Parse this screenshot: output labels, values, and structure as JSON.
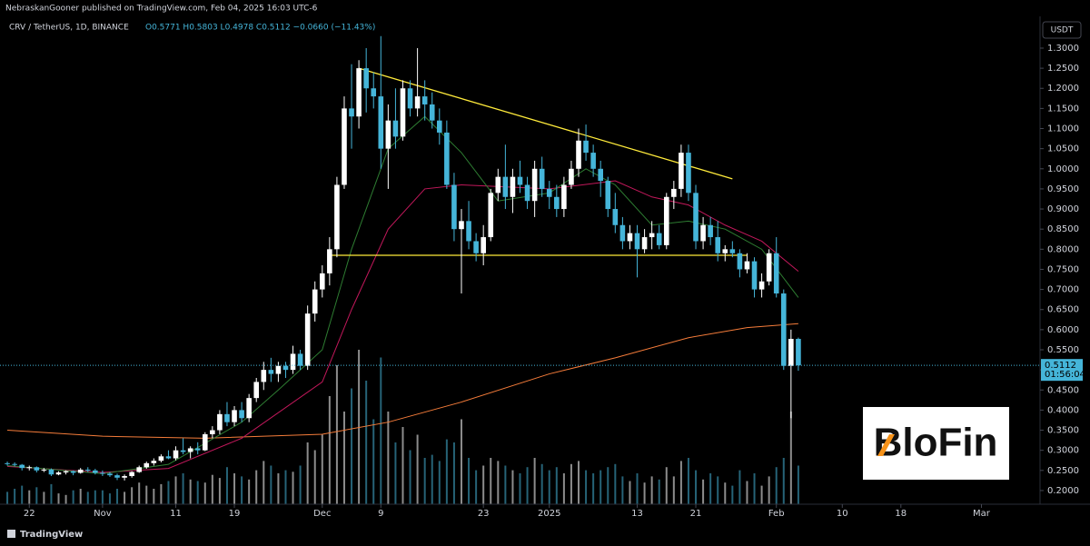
{
  "header": "NebraskanGooner published on TradingView.com, Feb 04, 2025 16:03 UTC-6",
  "footer": "TradingView",
  "watermark": "BloFin",
  "chart_data": {
    "type": "candlestick",
    "symbol": "CRV / TetherUS, 1D, BINANCE",
    "ohlc_text": "O0.5771 H0.5803 L0.4978 C0.5112 −0.0660 (−11.43%)",
    "currency": "USDT",
    "last_price": 0.5112,
    "countdown": "01:56:04",
    "up_color": "#ffffff",
    "down_color": "#45b5d9",
    "grid": false,
    "xlim": [
      "2024-10-18",
      "2025-03-09"
    ],
    "xticks": [
      {
        "value": "2024-10-22",
        "label": "22"
      },
      {
        "value": "2024-11-01",
        "label": "Nov"
      },
      {
        "value": "2024-11-11",
        "label": "11"
      },
      {
        "value": "2024-11-19",
        "label": "19"
      },
      {
        "value": "2024-12-01",
        "label": "Dec"
      },
      {
        "value": "2024-12-09",
        "label": "9"
      },
      {
        "value": "2024-12-23",
        "label": "23"
      },
      {
        "value": "2025-01-01",
        "label": "2025"
      },
      {
        "value": "2025-01-13",
        "label": "13"
      },
      {
        "value": "2025-01-21",
        "label": "21"
      },
      {
        "value": "2025-02-01",
        "label": "Feb"
      },
      {
        "value": "2025-02-10",
        "label": "10"
      },
      {
        "value": "2025-02-18",
        "label": "18"
      },
      {
        "value": "2025-03-01",
        "label": "Mar"
      }
    ],
    "ylim": [
      0.166,
      1.379
    ],
    "yticks": [
      {
        "value": 0.2,
        "label": "0.2000"
      },
      {
        "value": 0.25,
        "label": "0.2500"
      },
      {
        "value": 0.3,
        "label": "0.3000"
      },
      {
        "value": 0.35,
        "label": "0.3500"
      },
      {
        "value": 0.4,
        "label": "0.4000"
      },
      {
        "value": 0.45,
        "label": "0.4500"
      },
      {
        "value": 0.5,
        "label": "0.5000"
      },
      {
        "value": 0.55,
        "label": "0.5500"
      },
      {
        "value": 0.6,
        "label": "0.6000"
      },
      {
        "value": 0.65,
        "label": "0.6500"
      },
      {
        "value": 0.7,
        "label": "0.7000"
      },
      {
        "value": 0.75,
        "label": "0.7500"
      },
      {
        "value": 0.8,
        "label": "0.8000"
      },
      {
        "value": 0.85,
        "label": "0.8500"
      },
      {
        "value": 0.9,
        "label": "0.9000"
      },
      {
        "value": 0.95,
        "label": "0.9500"
      },
      {
        "value": 1.0,
        "label": "1.0000"
      },
      {
        "value": 1.05,
        "label": "1.0500"
      },
      {
        "value": 1.1,
        "label": "1.1000"
      },
      {
        "value": 1.15,
        "label": "1.1500"
      },
      {
        "value": 1.2,
        "label": "1.2000"
      },
      {
        "value": 1.25,
        "label": "1.2500"
      },
      {
        "value": 1.3,
        "label": "1.3000"
      }
    ],
    "x": [
      "2024-10-19",
      "2024-10-20",
      "2024-10-21",
      "2024-10-22",
      "2024-10-23",
      "2024-10-24",
      "2024-10-25",
      "2024-10-26",
      "2024-10-27",
      "2024-10-28",
      "2024-10-29",
      "2024-10-30",
      "2024-10-31",
      "2024-11-01",
      "2024-11-02",
      "2024-11-03",
      "2024-11-04",
      "2024-11-05",
      "2024-11-06",
      "2024-11-07",
      "2024-11-08",
      "2024-11-09",
      "2024-11-10",
      "2024-11-11",
      "2024-11-12",
      "2024-11-13",
      "2024-11-14",
      "2024-11-15",
      "2024-11-16",
      "2024-11-17",
      "2024-11-18",
      "2024-11-19",
      "2024-11-20",
      "2024-11-21",
      "2024-11-22",
      "2024-11-23",
      "2024-11-24",
      "2024-11-25",
      "2024-11-26",
      "2024-11-27",
      "2024-11-28",
      "2024-11-29",
      "2024-11-30",
      "2024-12-01",
      "2024-12-02",
      "2024-12-03",
      "2024-12-04",
      "2024-12-05",
      "2024-12-06",
      "2024-12-07",
      "2024-12-08",
      "2024-12-09",
      "2024-12-10",
      "2024-12-11",
      "2024-12-12",
      "2024-12-13",
      "2024-12-14",
      "2024-12-15",
      "2024-12-16",
      "2024-12-17",
      "2024-12-18",
      "2024-12-19",
      "2024-12-20",
      "2024-12-21",
      "2024-12-22",
      "2024-12-23",
      "2024-12-24",
      "2024-12-25",
      "2024-12-26",
      "2024-12-27",
      "2024-12-28",
      "2024-12-29",
      "2024-12-30",
      "2024-12-31",
      "2025-01-01",
      "2025-01-02",
      "2025-01-03",
      "2025-01-04",
      "2025-01-05",
      "2025-01-06",
      "2025-01-07",
      "2025-01-08",
      "2025-01-09",
      "2025-01-10",
      "2025-01-11",
      "2025-01-12",
      "2025-01-13",
      "2025-01-14",
      "2025-01-15",
      "2025-01-16",
      "2025-01-17",
      "2025-01-18",
      "2025-01-19",
      "2025-01-20",
      "2025-01-21",
      "2025-01-22",
      "2025-01-23",
      "2025-01-24",
      "2025-01-25",
      "2025-01-26",
      "2025-01-27",
      "2025-01-28",
      "2025-01-29",
      "2025-01-30",
      "2025-01-31",
      "2025-02-01",
      "2025-02-02",
      "2025-02-03",
      "2025-02-04"
    ],
    "open": [
      0.268,
      0.266,
      0.264,
      0.256,
      0.258,
      0.25,
      0.252,
      0.24,
      0.245,
      0.248,
      0.244,
      0.252,
      0.25,
      0.244,
      0.242,
      0.238,
      0.232,
      0.236,
      0.246,
      0.258,
      0.268,
      0.274,
      0.285,
      0.28,
      0.3,
      0.296,
      0.305,
      0.3,
      0.34,
      0.35,
      0.39,
      0.37,
      0.4,
      0.38,
      0.43,
      0.47,
      0.5,
      0.49,
      0.51,
      0.5,
      0.54,
      0.51,
      0.64,
      0.7,
      0.74,
      0.8,
      0.96,
      1.15,
      1.13,
      1.25,
      1.2,
      1.18,
      1.05,
      1.12,
      1.08,
      1.2,
      1.15,
      1.18,
      1.16,
      1.12,
      1.09,
      0.96,
      0.85,
      0.87,
      0.82,
      0.79,
      0.83,
      0.94,
      0.98,
      0.93,
      0.98,
      0.96,
      0.92,
      1.0,
      0.95,
      0.93,
      0.9,
      0.96,
      1.0,
      1.07,
      1.04,
      1.0,
      0.97,
      0.9,
      0.86,
      0.82,
      0.84,
      0.8,
      0.83,
      0.84,
      0.81,
      0.93,
      0.95,
      1.04,
      0.94,
      0.82,
      0.86,
      0.83,
      0.79,
      0.8,
      0.79,
      0.75,
      0.77,
      0.7,
      0.72,
      0.79,
      0.69,
      0.51,
      0.5771
    ],
    "high": [
      0.272,
      0.27,
      0.266,
      0.262,
      0.26,
      0.256,
      0.255,
      0.248,
      0.25,
      0.25,
      0.256,
      0.258,
      0.254,
      0.25,
      0.246,
      0.242,
      0.24,
      0.248,
      0.262,
      0.272,
      0.28,
      0.29,
      0.3,
      0.31,
      0.33,
      0.31,
      0.32,
      0.345,
      0.36,
      0.4,
      0.42,
      0.41,
      0.42,
      0.44,
      0.48,
      0.52,
      0.53,
      0.52,
      0.52,
      0.56,
      0.55,
      0.66,
      0.72,
      0.76,
      0.83,
      0.98,
      1.18,
      1.26,
      1.27,
      1.3,
      1.24,
      1.33,
      1.16,
      1.2,
      1.22,
      1.22,
      1.3,
      1.22,
      1.19,
      1.15,
      1.12,
      0.99,
      0.9,
      0.92,
      0.84,
      0.86,
      0.95,
      1.0,
      1.06,
      1.0,
      1.02,
      0.98,
      1.02,
      1.03,
      0.97,
      0.96,
      0.98,
      1.02,
      1.1,
      1.11,
      1.06,
      1.02,
      0.98,
      0.94,
      0.88,
      0.86,
      0.86,
      0.85,
      0.87,
      0.86,
      0.94,
      0.97,
      1.06,
      1.06,
      0.96,
      0.88,
      0.88,
      0.87,
      0.81,
      0.82,
      0.8,
      0.79,
      0.78,
      0.74,
      0.8,
      0.83,
      0.7,
      0.6,
      0.5803
    ],
    "low": [
      0.262,
      0.26,
      0.25,
      0.25,
      0.245,
      0.246,
      0.236,
      0.238,
      0.24,
      0.238,
      0.242,
      0.246,
      0.24,
      0.236,
      0.234,
      0.226,
      0.225,
      0.232,
      0.244,
      0.254,
      0.262,
      0.27,
      0.278,
      0.275,
      0.29,
      0.28,
      0.29,
      0.298,
      0.33,
      0.34,
      0.36,
      0.36,
      0.37,
      0.37,
      0.42,
      0.45,
      0.47,
      0.47,
      0.48,
      0.49,
      0.5,
      0.5,
      0.62,
      0.68,
      0.71,
      0.78,
      0.95,
      1.05,
      1.1,
      1.14,
      1.15,
      1.0,
      0.95,
      1.05,
      1.07,
      1.13,
      1.13,
      1.12,
      1.1,
      1.06,
      0.95,
      0.82,
      0.69,
      0.8,
      0.77,
      0.76,
      0.82,
      0.92,
      0.9,
      0.89,
      0.94,
      0.9,
      0.88,
      0.93,
      0.9,
      0.88,
      0.88,
      0.95,
      0.98,
      1.02,
      0.98,
      0.93,
      0.88,
      0.84,
      0.8,
      0.8,
      0.73,
      0.79,
      0.8,
      0.8,
      0.8,
      0.9,
      0.93,
      0.92,
      0.8,
      0.8,
      0.81,
      0.77,
      0.77,
      0.78,
      0.73,
      0.74,
      0.68,
      0.68,
      0.71,
      0.68,
      0.5,
      0.38,
      0.4978
    ],
    "close": [
      0.266,
      0.264,
      0.256,
      0.258,
      0.25,
      0.252,
      0.24,
      0.245,
      0.248,
      0.244,
      0.252,
      0.25,
      0.244,
      0.242,
      0.238,
      0.232,
      0.236,
      0.246,
      0.258,
      0.268,
      0.274,
      0.285,
      0.28,
      0.3,
      0.296,
      0.305,
      0.3,
      0.34,
      0.35,
      0.39,
      0.37,
      0.4,
      0.38,
      0.43,
      0.47,
      0.5,
      0.49,
      0.51,
      0.5,
      0.54,
      0.51,
      0.64,
      0.7,
      0.74,
      0.8,
      0.96,
      1.15,
      1.13,
      1.25,
      1.2,
      1.18,
      1.05,
      1.12,
      1.08,
      1.2,
      1.15,
      1.18,
      1.16,
      1.12,
      1.09,
      0.96,
      0.85,
      0.87,
      0.82,
      0.79,
      0.83,
      0.94,
      0.98,
      0.93,
      0.98,
      0.96,
      0.92,
      1.0,
      0.95,
      0.93,
      0.9,
      0.96,
      1.0,
      1.07,
      1.04,
      1.0,
      0.97,
      0.9,
      0.86,
      0.82,
      0.84,
      0.8,
      0.83,
      0.84,
      0.81,
      0.93,
      0.95,
      1.04,
      0.94,
      0.82,
      0.86,
      0.83,
      0.79,
      0.8,
      0.79,
      0.75,
      0.77,
      0.7,
      0.72,
      0.79,
      0.69,
      0.51,
      0.5771,
      0.5112
    ],
    "vlim": [
      0,
      100
    ],
    "volume": [
      8,
      10,
      12,
      9,
      11,
      8,
      13,
      7,
      6,
      9,
      10,
      8,
      9,
      9,
      7,
      10,
      8,
      11,
      14,
      12,
      10,
      13,
      15,
      18,
      20,
      16,
      15,
      14,
      19,
      17,
      24,
      20,
      18,
      16,
      22,
      28,
      25,
      20,
      22,
      21,
      25,
      40,
      35,
      45,
      70,
      90,
      60,
      75,
      100,
      80,
      55,
      95,
      60,
      40,
      50,
      35,
      45,
      30,
      32,
      28,
      42,
      40,
      55,
      30,
      22,
      25,
      30,
      28,
      25,
      22,
      20,
      24,
      30,
      26,
      22,
      24,
      20,
      26,
      28,
      22,
      20,
      22,
      24,
      26,
      18,
      15,
      20,
      14,
      18,
      16,
      24,
      18,
      28,
      30,
      22,
      16,
      20,
      18,
      14,
      12,
      22,
      15,
      20,
      12,
      18,
      24,
      30,
      60,
      25
    ],
    "lines": [
      {
        "color": "#f57c3a",
        "x": [
          "2024-10-19",
          "2024-11-01",
          "2024-11-15",
          "2024-12-01",
          "2024-12-10",
          "2024-12-20",
          "2025-01-01",
          "2025-01-10",
          "2025-01-20",
          "2025-01-28",
          "2025-02-04"
        ],
        "values": [
          0.35,
          0.335,
          0.33,
          0.34,
          0.37,
          0.42,
          0.49,
          0.53,
          0.58,
          0.605,
          0.615
        ]
      },
      {
        "color": "#c2185b",
        "x": [
          "2024-10-19",
          "2024-11-01",
          "2024-11-10",
          "2024-11-20",
          "2024-12-01",
          "2024-12-05",
          "2024-12-10",
          "2024-12-15",
          "2024-12-20",
          "2025-01-01",
          "2025-01-10",
          "2025-01-15",
          "2025-01-20",
          "2025-01-25",
          "2025-01-30",
          "2025-02-04"
        ],
        "values": [
          0.26,
          0.245,
          0.255,
          0.33,
          0.47,
          0.65,
          0.85,
          0.95,
          0.96,
          0.95,
          0.97,
          0.93,
          0.91,
          0.86,
          0.82,
          0.745
        ]
      },
      {
        "color": "#2e7d32",
        "x": [
          "2024-10-19",
          "2024-11-01",
          "2024-11-10",
          "2024-11-20",
          "2024-11-25",
          "2024-12-01",
          "2024-12-05",
          "2024-12-10",
          "2024-12-15",
          "2024-12-20",
          "2024-12-25",
          "2025-01-01",
          "2025-01-06",
          "2025-01-10",
          "2025-01-15",
          "2025-01-20",
          "2025-01-25",
          "2025-01-30",
          "2025-02-04"
        ],
        "values": [
          0.262,
          0.242,
          0.265,
          0.37,
          0.45,
          0.55,
          0.8,
          1.05,
          1.13,
          1.04,
          0.92,
          0.94,
          1.0,
          0.96,
          0.86,
          0.87,
          0.85,
          0.8,
          0.68
        ]
      }
    ],
    "trendlines": [
      {
        "color": "#ffeb3b",
        "x": [
          "2024-12-06",
          "2025-01-26"
        ],
        "values": [
          1.25,
          0.975
        ]
      },
      {
        "color": "#ffeb3b",
        "x": [
          "2024-12-02",
          "2025-01-28"
        ],
        "values": [
          0.785,
          0.785
        ]
      }
    ]
  }
}
